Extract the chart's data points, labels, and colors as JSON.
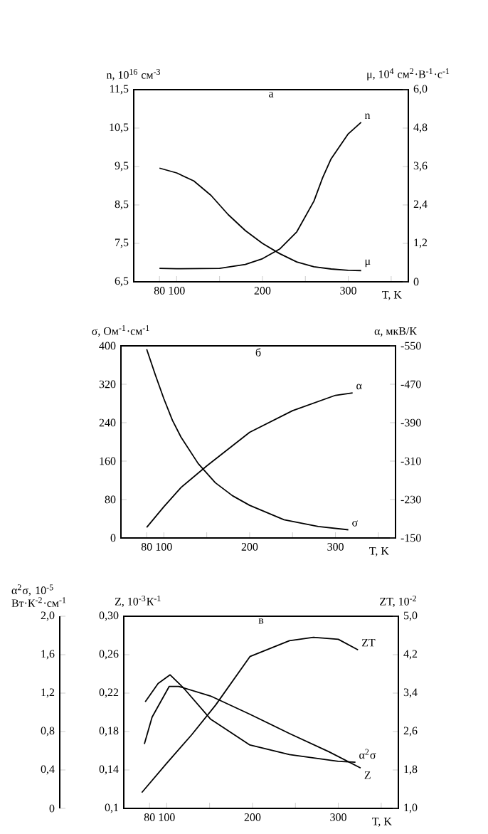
{
  "chart_data": [
    {
      "type": "line",
      "title": "а",
      "xlabel": "T, K",
      "ylabel": "n, 10$^{16}$ см$^{-3}$",
      "y2label": "μ, 10$^{4}$ см$^{2}$·В$^{-1}$·с$^{-1}$",
      "xlim": [
        50,
        370
      ],
      "xticks": [
        80,
        100,
        {
          "value": 150,
          "label": null
        },
        200,
        {
          "value": 250,
          "label": null
        },
        300,
        {
          "value": 350,
          "label": null
        }
      ],
      "ylim": [
        6.5,
        11.5
      ],
      "yticks": [
        {
          "value": 6.5,
          "label": "6,5"
        },
        {
          "value": 7.5,
          "label": "7,5"
        },
        {
          "value": 8.5,
          "label": "8,5"
        },
        {
          "value": 9.5,
          "label": "9,5"
        },
        {
          "value": 10.5,
          "label": "10,5"
        },
        {
          "value": 11.5,
          "label": "11,5"
        }
      ],
      "y2lim": [
        0,
        6.0
      ],
      "y2ticks": [
        0,
        {
          "value": 1.2,
          "label": "1,2"
        },
        {
          "value": 2.4,
          "label": "2,4"
        },
        {
          "value": 3.6,
          "label": "3,6"
        },
        {
          "value": 4.8,
          "label": "4,8"
        },
        {
          "value": 6.0,
          "label": "6,0"
        }
      ],
      "series": [
        {
          "name": "n",
          "color": "#000000",
          "x": [
            80,
            100,
            150,
            180,
            200,
            220,
            240,
            260,
            270,
            280,
            300,
            315
          ],
          "values": [
            6.85,
            6.84,
            6.85,
            6.95,
            7.1,
            7.35,
            7.8,
            8.6,
            9.2,
            9.7,
            10.35,
            10.65
          ]
        },
        {
          "name": "μ",
          "color": "#000000",
          "axis": "y2",
          "x": [
            80,
            100,
            120,
            140,
            160,
            180,
            200,
            220,
            240,
            260,
            280,
            300,
            315
          ],
          "values": [
            3.55,
            3.4,
            3.15,
            2.7,
            2.1,
            1.6,
            1.2,
            0.88,
            0.62,
            0.47,
            0.4,
            0.36,
            0.35
          ]
        }
      ]
    },
    {
      "type": "line",
      "title": "б",
      "xlabel": "T, K",
      "ylabel": "σ, Ом$^{-1}$·см$^{-1}$",
      "y2label": "α, мкВ/К",
      "xlim": [
        50,
        370
      ],
      "xticks": [
        80,
        100,
        {
          "value": 150,
          "label": null
        },
        200,
        {
          "value": 250,
          "label": null
        },
        300,
        {
          "value": 350,
          "label": null
        }
      ],
      "ylim": [
        0,
        400
      ],
      "yticks": [
        0,
        80,
        160,
        240,
        320,
        400
      ],
      "y2lim": [
        -150,
        -550
      ],
      "y2ticks": [
        -150,
        -230,
        -310,
        -390,
        -470,
        -550
      ],
      "series": [
        {
          "name": "α",
          "color": "#000000",
          "axis": "y2",
          "x": [
            80,
            100,
            120,
            150,
            200,
            250,
            300,
            320
          ],
          "values": [
            -172,
            -215,
            -255,
            -300,
            -370,
            -415,
            -447,
            -452
          ]
        },
        {
          "name": "σ",
          "color": "#000000",
          "x": [
            80,
            90,
            100,
            110,
            120,
            140,
            160,
            180,
            200,
            240,
            280,
            315
          ],
          "values": [
            393,
            340,
            290,
            245,
            210,
            155,
            115,
            88,
            68,
            38,
            24,
            17
          ]
        }
      ]
    },
    {
      "type": "line",
      "title": "в",
      "xlabel": "T, K",
      "ylabel": "Z, 10$^{-3}$К$^{-1}$",
      "y2label": "ZT, 10$^{-2}$",
      "y3label": "α$^{2}$σ, 10$^{-5}$ Вт·К$^{-2}$·см$^{-1}$",
      "xlim": [
        50,
        370
      ],
      "xticks": [
        80,
        100,
        {
          "value": 150,
          "label": null
        },
        200,
        {
          "value": 250,
          "label": null
        },
        300,
        {
          "value": 350,
          "label": null
        }
      ],
      "ylim": [
        0.1,
        0.3
      ],
      "yticks": [
        {
          "value": 0.1,
          "label": "0,1"
        },
        {
          "value": 0.14,
          "label": "0,14"
        },
        {
          "value": 0.18,
          "label": "0,18"
        },
        {
          "value": 0.22,
          "label": "0,22"
        },
        {
          "value": 0.26,
          "label": "0,26"
        },
        {
          "value": 0.3,
          "label": "0,30"
        }
      ],
      "y2lim": [
        1.0,
        5.0
      ],
      "y2ticks": [
        {
          "value": 1.0,
          "label": "1,0"
        },
        {
          "value": 1.8,
          "label": "1,8"
        },
        {
          "value": 2.6,
          "label": "2,6"
        },
        {
          "value": 3.4,
          "label": "3,4"
        },
        {
          "value": 4.2,
          "label": "4,2"
        },
        {
          "value": 5.0,
          "label": "5,0"
        }
      ],
      "y3lim": [
        0,
        2.0
      ],
      "y3ticks": [
        0,
        {
          "value": 0.4,
          "label": "0,4"
        },
        {
          "value": 0.8,
          "label": "0,8"
        },
        {
          "value": 1.2,
          "label": "1,2"
        },
        {
          "value": 1.6,
          "label": "1,6"
        },
        {
          "value": 2.0,
          "label": "2,0"
        }
      ],
      "series": [
        {
          "name": "ZT",
          "color": "#000000",
          "axis": "y2",
          "x": [
            71,
            100,
            129,
            157,
            197,
            243,
            271,
            300,
            323
          ],
          "values": [
            1.33,
            1.94,
            2.53,
            3.15,
            4.16,
            4.49,
            4.56,
            4.52,
            4.3
          ]
        },
        {
          "name": "α$^{2}$σ",
          "color": "#000000",
          "axis": "y3",
          "x": [
            75,
            90,
            104,
            120,
            151,
            197,
            243,
            300,
            320
          ],
          "values": [
            1.11,
            1.3,
            1.39,
            1.25,
            0.93,
            0.66,
            0.56,
            0.49,
            0.48
          ]
        },
        {
          "name": "Z",
          "color": "#000000",
          "x": [
            74,
            83,
            103,
            114,
            151,
            197,
            243,
            289,
            326
          ],
          "values": [
            0.167,
            0.195,
            0.227,
            0.227,
            0.217,
            0.198,
            0.178,
            0.159,
            0.142
          ]
        }
      ]
    }
  ]
}
